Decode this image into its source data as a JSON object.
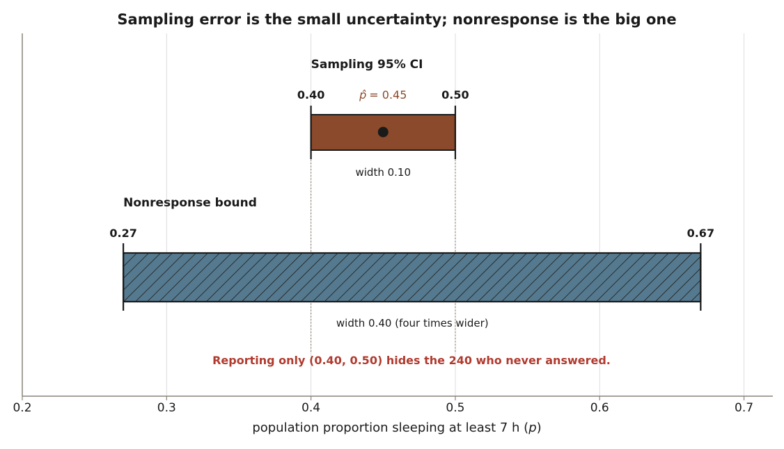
{
  "chart_data": {
    "type": "interval",
    "title": "Sampling error is the small uncertainty; nonresponse is the big one",
    "xlabel_prefix": "population proportion sleeping at least 7 h (",
    "xlabel_var": "p",
    "xlabel_suffix": ")",
    "xlim": [
      0.2,
      0.72
    ],
    "xticks": [
      0.2,
      0.3,
      0.4,
      0.5,
      0.6,
      0.7
    ],
    "xtick_labels": [
      "0.2",
      "0.3",
      "0.4",
      "0.5",
      "0.6",
      "0.7"
    ],
    "grid": "vertical",
    "intervals": [
      {
        "name": "Sampling 95% CI",
        "lower": 0.4,
        "upper": 0.5,
        "lower_label": "0.40",
        "upper_label": "0.50",
        "estimate": 0.45,
        "estimate_symbol": "p̂",
        "estimate_label": "= 0.45",
        "width_label": "width 0.10",
        "color": "#8b4a2b",
        "hatch": false
      },
      {
        "name": "Nonresponse bound",
        "lower": 0.27,
        "upper": 0.67,
        "lower_label": "0.27",
        "upper_label": "0.67",
        "width_label": "width 0.40  (four times wider)",
        "color": "#557a8f",
        "hatch": true
      }
    ],
    "annotation": "Reporting only (0.40, 0.50) hides the 240 who never answered.",
    "colors": {
      "sampling": "#8b4a2b",
      "nonresponse": "#557a8f",
      "annotation": "#b03a2e",
      "axis": "#8a8478",
      "grid": "#dcdcdc"
    }
  }
}
